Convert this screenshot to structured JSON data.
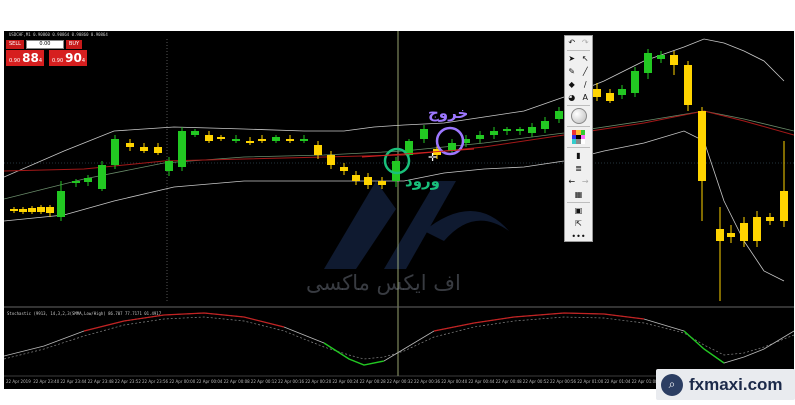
{
  "chart": {
    "symbol_title": "USDCHF,M1  0.90860 0.90864 0.90860 0.90864",
    "indicator_title": "Stochastic (9913, 14,3,2,3(SMMA,Low/High) 86.707 77.7171 01.4917",
    "time_labels": [
      "22 Apr 2019",
      "22 Apr 23:40",
      "22 Apr 23:44",
      "22 Apr 23:48",
      "22 Apr 23:52",
      "22 Apr 23:56",
      "22 Apr 00:00",
      "22 Apr 00:04",
      "22 Apr 00:08",
      "22 Apr 00:12",
      "22 Apr 00:16",
      "22 Apr 00:20",
      "22 Apr 00:24",
      "22 Apr 00:28",
      "22 Apr 00:32",
      "22 Apr 00:36",
      "22 Apr 00:40",
      "22 Apr 00:44",
      "22 Apr 00:48",
      "22 Apr 00:52",
      "22 Apr 00:56",
      "22 Apr 01:00",
      "22 Apr 01:04",
      "22 Apr 01:08",
      "22 Apr 01:12",
      "22 Apr 01:16",
      "22 Apr 01:20",
      "22 Apr 01:24",
      "22 Apr 01:28"
    ]
  },
  "trade_panel": {
    "sell_label": "SELL",
    "buy_label": "BUY",
    "lot_value": "0.00",
    "sell_small": "0.90",
    "sell_big": "88",
    "sell_sup": "4",
    "buy_small": "0.90",
    "buy_big": "90",
    "buy_sup": "4"
  },
  "annotations": {
    "exit_label": "خروج",
    "entry_label": "ورود",
    "watermark_text": "اف ایکس ماکسی"
  },
  "brand": {
    "text": "fxmaxi.com"
  },
  "toolbar_icons": [
    "arrow-left-icon",
    "arrow-right-icon",
    "cursor-icon",
    "cross-icon",
    "pencil-icon",
    "line-icon",
    "eraser-icon",
    "brush-icon",
    "fill-icon",
    "text-icon",
    "circle-icon",
    "color-palette-icon",
    "page-icon",
    "list-icon",
    "move-icon",
    "grid-icon",
    "screen-icon",
    "share-icon",
    "more-icon"
  ],
  "colors": {
    "bull": "#22c822",
    "bear": "#ffd400",
    "exit_circle": "#9d77ff",
    "entry_circle": "#19c07a",
    "ma_red": "#a31818",
    "band": "#c8c8c8"
  }
}
